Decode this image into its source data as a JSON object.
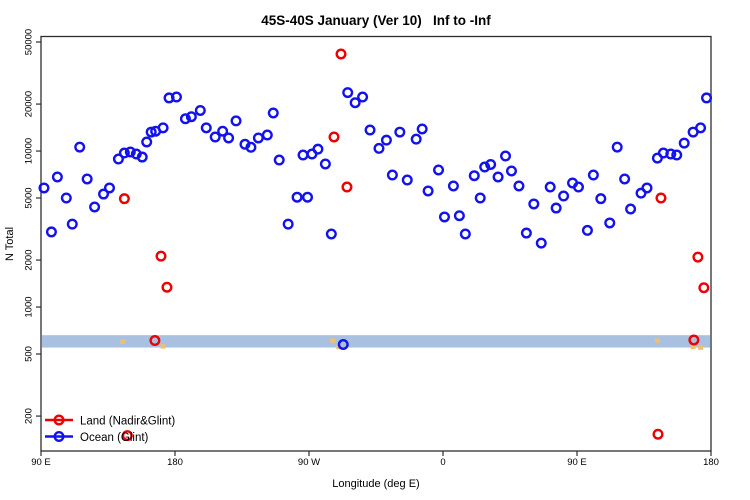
{
  "chart_data": {
    "type": "scatter",
    "title": "45S-40S January (Ver 10)   Inf to -Inf",
    "xlabel": "Longitude (deg E)",
    "ylabel": "N Total",
    "x_axis": {
      "range": [
        90,
        540
      ],
      "ticks": [
        {
          "v": 90,
          "label": "90 E"
        },
        {
          "v": 180,
          "label": "180"
        },
        {
          "v": 270,
          "label": "90 W"
        },
        {
          "v": 360,
          "label": "0"
        },
        {
          "v": 450,
          "label": "90 E"
        },
        {
          "v": 540,
          "label": "180"
        }
      ]
    },
    "y_axis": {
      "scale": "log",
      "range": [
        120,
        54600
      ],
      "ticks": [
        200,
        500,
        1000,
        2000,
        5000,
        10000,
        20000,
        50000
      ]
    },
    "reference_band": {
      "y_min": 550,
      "y_max": 660,
      "color": "#a9c1e1"
    },
    "grid": false,
    "legend_position": "bottom-left",
    "series": [
      {
        "id": "land",
        "name": "Land (Nadir&Glint)",
        "color": "#ee0000",
        "marker": "open-circle",
        "points": [
          [
            146,
            4950
          ],
          [
            148,
            150
          ],
          [
            166.5,
            610
          ],
          [
            170.6,
            2120
          ],
          [
            174.6,
            1340
          ],
          [
            286.8,
            12310
          ],
          [
            291.5,
            41900
          ],
          [
            295.5,
            5880
          ],
          [
            504.4,
            153
          ],
          [
            506.4,
            5000
          ],
          [
            528.5,
            615
          ],
          [
            531.2,
            2090
          ],
          [
            535.2,
            1330
          ]
        ]
      },
      {
        "id": "ocean",
        "name": "Ocean (Glint)",
        "color": "#1212ee",
        "marker": "open-circle",
        "points": [
          [
            92,
            5800
          ],
          [
            97,
            3030
          ],
          [
            101,
            6820
          ],
          [
            107,
            5000
          ],
          [
            111,
            3400
          ],
          [
            116,
            10600
          ],
          [
            121,
            6620
          ],
          [
            126,
            4380
          ],
          [
            132,
            5300
          ],
          [
            136,
            5800
          ],
          [
            142,
            8890
          ],
          [
            146,
            9710
          ],
          [
            150,
            9860
          ],
          [
            154,
            9570
          ],
          [
            158,
            9150
          ],
          [
            161,
            11430
          ],
          [
            164,
            13230
          ],
          [
            167,
            13400
          ],
          [
            172,
            14080
          ],
          [
            176,
            21900
          ],
          [
            181,
            22200
          ],
          [
            187,
            16100
          ],
          [
            191,
            16600
          ],
          [
            197,
            18200
          ],
          [
            201,
            14080
          ],
          [
            207,
            12300
          ],
          [
            212,
            13400
          ],
          [
            216,
            12130
          ],
          [
            221,
            15600
          ],
          [
            227,
            11050
          ],
          [
            231,
            10570
          ],
          [
            236,
            12130
          ],
          [
            242,
            12670
          ],
          [
            246,
            17540
          ],
          [
            250,
            8760
          ],
          [
            256,
            3400
          ],
          [
            262,
            5060
          ],
          [
            266,
            9430
          ],
          [
            269,
            5060
          ],
          [
            272,
            9570
          ],
          [
            276,
            10280
          ],
          [
            281,
            8260
          ],
          [
            285,
            2940
          ],
          [
            293,
            575
          ],
          [
            296,
            23700
          ],
          [
            301,
            20400
          ],
          [
            306,
            22200
          ],
          [
            311,
            13640
          ],
          [
            317,
            10400
          ],
          [
            322,
            11740
          ],
          [
            326,
            7020
          ],
          [
            331,
            13230
          ],
          [
            336,
            6520
          ],
          [
            342,
            11920
          ],
          [
            346,
            13850
          ],
          [
            350,
            5545
          ],
          [
            357,
            7560
          ],
          [
            361,
            3780
          ],
          [
            367,
            5970
          ],
          [
            371,
            3850
          ],
          [
            375,
            2940
          ],
          [
            381,
            6950
          ],
          [
            385,
            5000
          ],
          [
            388,
            7900
          ],
          [
            392,
            8200
          ],
          [
            397,
            6820
          ],
          [
            402,
            9290
          ],
          [
            406,
            7450
          ],
          [
            411,
            5970
          ],
          [
            416,
            2980
          ],
          [
            421,
            4580
          ],
          [
            426,
            2570
          ],
          [
            432,
            5880
          ],
          [
            436,
            4310
          ],
          [
            441,
            5150
          ],
          [
            447,
            6240
          ],
          [
            451,
            5880
          ],
          [
            457,
            3100
          ],
          [
            461,
            7020
          ],
          [
            466,
            4950
          ],
          [
            472,
            3460
          ],
          [
            477,
            10600
          ],
          [
            482,
            6620
          ],
          [
            486,
            4250
          ],
          [
            493,
            5370
          ],
          [
            497,
            5800
          ],
          [
            504,
            9010
          ],
          [
            508,
            9710
          ],
          [
            513,
            9570
          ],
          [
            517,
            9430
          ],
          [
            522,
            11240
          ],
          [
            528,
            13230
          ],
          [
            533,
            14080
          ],
          [
            537,
            21900
          ]
        ]
      },
      {
        "id": "band-markers",
        "name": "",
        "color": "#eec170",
        "marker": "small-square",
        "points": [
          [
            145,
            600
          ],
          [
            172,
            560
          ],
          [
            286,
            610
          ],
          [
            290,
            555
          ],
          [
            504,
            610
          ],
          [
            528,
            555
          ],
          [
            533,
            550
          ]
        ]
      }
    ]
  }
}
